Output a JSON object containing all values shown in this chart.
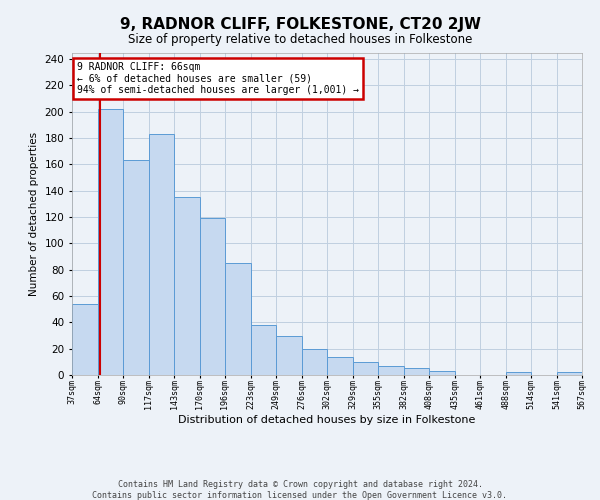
{
  "title": "9, RADNOR CLIFF, FOLKESTONE, CT20 2JW",
  "subtitle": "Size of property relative to detached houses in Folkestone",
  "xlabel": "Distribution of detached houses by size in Folkestone",
  "ylabel": "Number of detached properties",
  "footer_line1": "Contains HM Land Registry data © Crown copyright and database right 2024.",
  "footer_line2": "Contains public sector information licensed under the Open Government Licence v3.0.",
  "annotation_title": "9 RADNOR CLIFF: 66sqm",
  "annotation_line2": "← 6% of detached houses are smaller (59)",
  "annotation_line3": "94% of semi-detached houses are larger (1,001) →",
  "property_line_x": 66,
  "bar_edges": [
    37,
    64,
    90,
    117,
    143,
    170,
    196,
    223,
    249,
    276,
    302,
    329,
    355,
    382,
    408,
    435,
    461,
    488,
    514,
    541,
    567
  ],
  "bar_heights": [
    54,
    202,
    163,
    183,
    135,
    119,
    85,
    38,
    30,
    20,
    14,
    10,
    7,
    5,
    3,
    0,
    0,
    2,
    0,
    2,
    0
  ],
  "bar_color": "#c6d9f0",
  "bar_edge_color": "#5b9bd5",
  "vline_color": "#cc0000",
  "annotation_box_edgecolor": "#cc0000",
  "grid_color": "#c0cfe0",
  "background_color": "#edf2f8",
  "ylim_max": 245,
  "yticks": [
    0,
    20,
    40,
    60,
    80,
    100,
    120,
    140,
    160,
    180,
    200,
    220,
    240
  ]
}
